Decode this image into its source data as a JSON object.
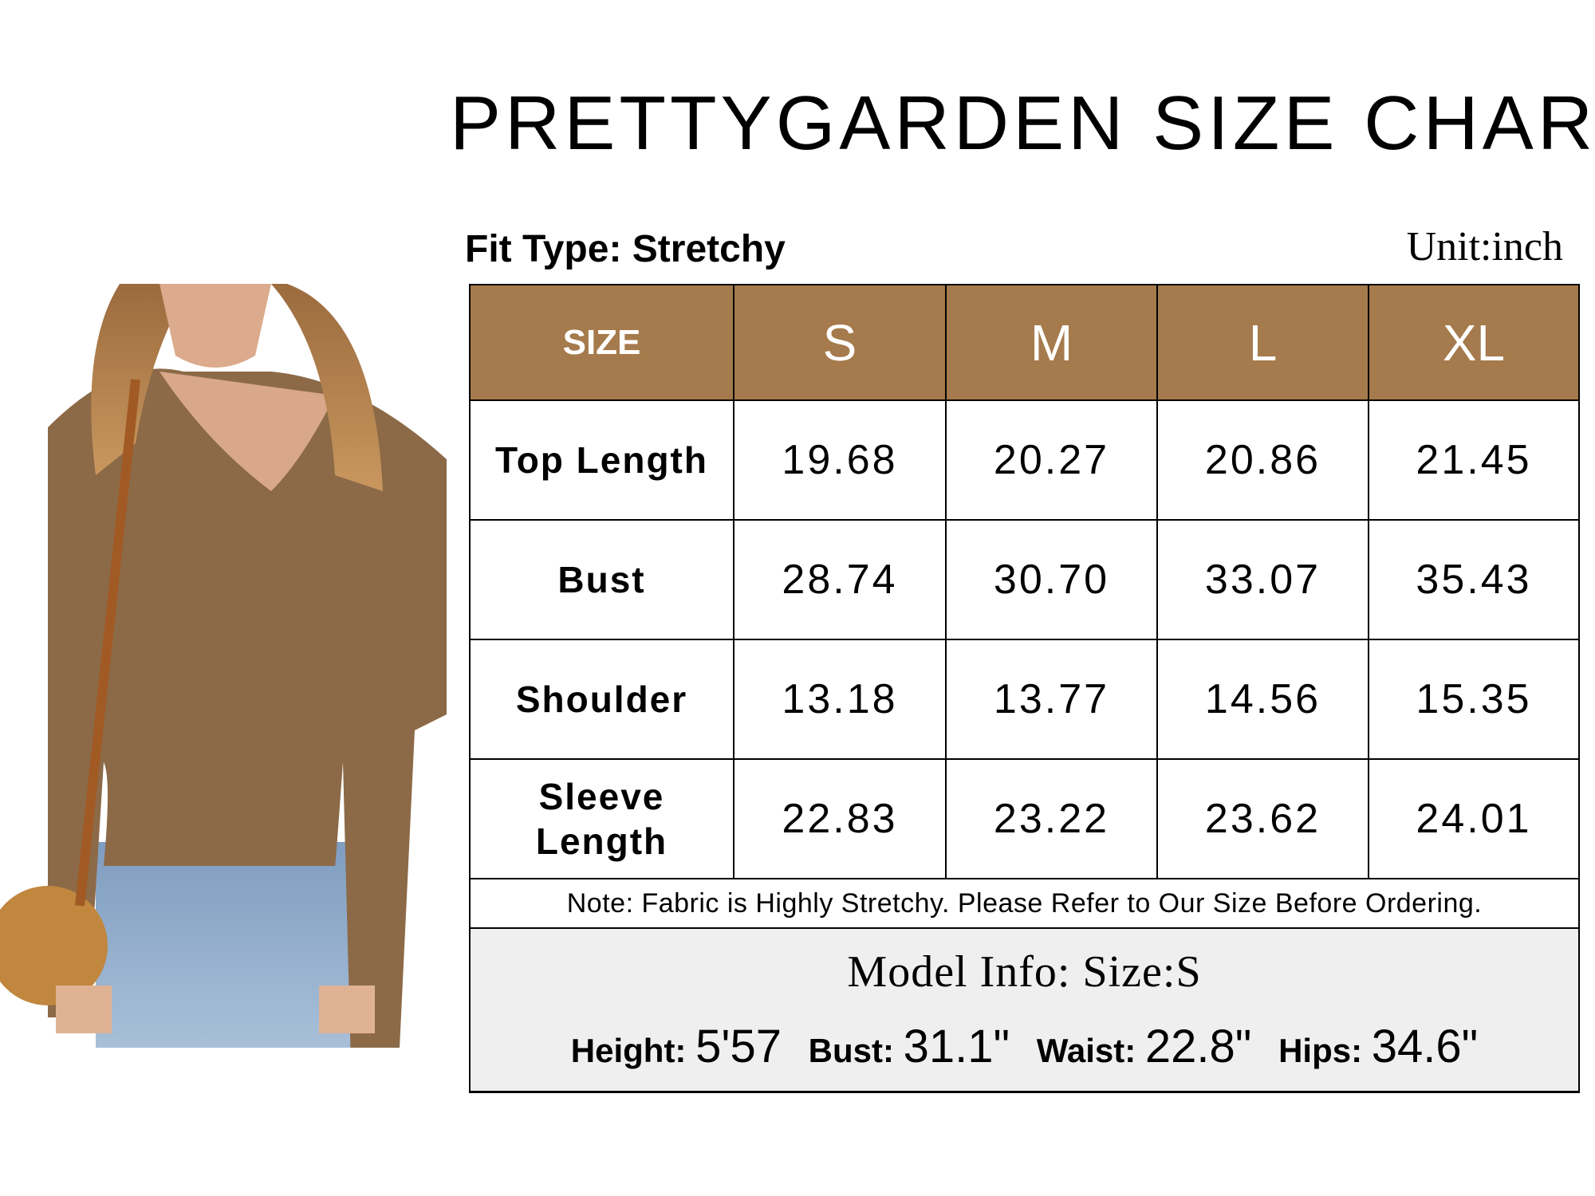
{
  "title": "PRETTYGARDEN SIZE CHART",
  "fit_type": "Fit Type: Stretchy",
  "unit": "Unit:inch",
  "colors": {
    "header_bg": "#a57a4c",
    "header_text": "#ffffff",
    "model_bg": "#efefef"
  },
  "table": {
    "headers": [
      "SIZE",
      "S",
      "M",
      "L",
      "XL"
    ],
    "rows": [
      {
        "label": "Top Length",
        "values": [
          "19.68",
          "20.27",
          "20.86",
          "21.45"
        ]
      },
      {
        "label": "Bust",
        "values": [
          "28.74",
          "30.70",
          "33.07",
          "35.43"
        ]
      },
      {
        "label": "Shoulder",
        "values": [
          "13.18",
          "13.77",
          "14.56",
          "15.35"
        ]
      },
      {
        "label": "Sleeve Length",
        "values": [
          "22.83",
          "23.22",
          "23.62",
          "24.01"
        ]
      }
    ],
    "note": "Note: Fabric is Highly Stretchy. Please Refer to Our Size Before Ordering."
  },
  "model_info": {
    "title": "Model Info: Size:S",
    "items": [
      {
        "label": "Height:",
        "value": "5'57"
      },
      {
        "label": "Bust:",
        "value": "31.1\""
      },
      {
        "label": "Waist:",
        "value": "22.8\""
      },
      {
        "label": "Hips:",
        "value": "34.6\""
      }
    ]
  }
}
